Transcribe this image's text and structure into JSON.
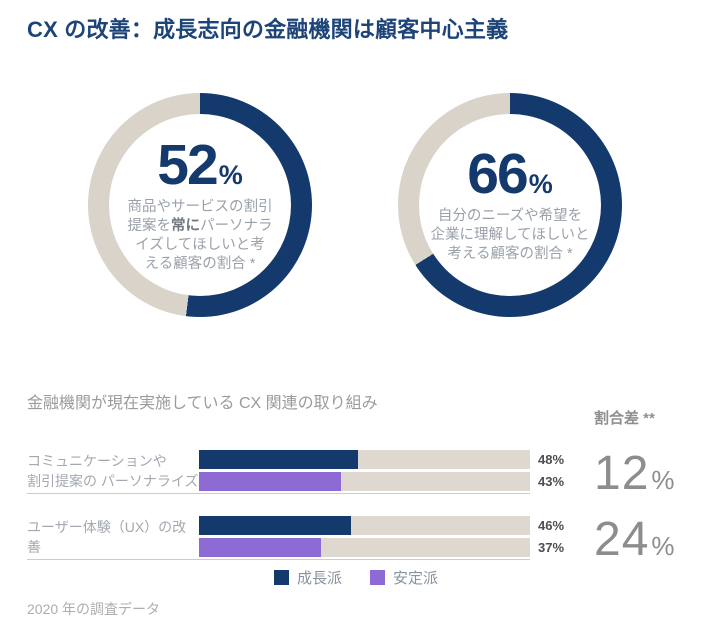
{
  "title": "CX の改善：成長志向の金融機関は顧客中心主義",
  "colors": {
    "navy": "#143a6d",
    "title_navy": "#1d4478",
    "purple": "#8d6ad4",
    "beige": "#d9d3c9",
    "track": "#ded8d1"
  },
  "donuts": [
    {
      "value": 52,
      "number": "52",
      "pct": "%",
      "caption": {
        "l1": "商品やサービスの割引",
        "l2_pre": "提案を",
        "l2_bold": "常に",
        "l2_post": "パーソナラ",
        "l3": "イズしてほしいと考",
        "l4": "える顧客の割合 *"
      }
    },
    {
      "value": 66,
      "number": "66",
      "pct": "%",
      "caption": {
        "l1": "自分のニーズや希望を",
        "l2": "企業に理解してほしいと",
        "l3": "考える顧客の割合 *"
      }
    }
  ],
  "bar_section": {
    "heading": "金融機関が現在実施している CX 関連の取り組み",
    "diff_heading": "割合差 **",
    "rows": [
      {
        "label_line1": "コミュニケーションや",
        "label_line2": "割引提案の パーソナライズ",
        "navy_value": 48,
        "purple_value": 43,
        "navy_label": "48%",
        "purple_label": "43%",
        "diff_number": "12",
        "diff_pct": "%"
      },
      {
        "label_line1": "ユーザー体験（UX）の改善",
        "navy_value": 46,
        "purple_value": 37,
        "navy_label": "46%",
        "purple_label": "37%",
        "diff_number": "24",
        "diff_pct": "%"
      }
    ]
  },
  "legend": {
    "items": [
      {
        "label": "成長派"
      },
      {
        "label": "安定派"
      }
    ]
  },
  "footer": "2020 年の調査データ",
  "chart_data": [
    {
      "type": "pie",
      "subtype": "donut",
      "value": 52,
      "values": [
        52,
        48
      ],
      "slice_colors": [
        "#143a6d",
        "#d9d3c9"
      ],
      "label": "商品やサービスの割引提案を常にパーソナライズしてほしいと考える顧客の割合 *",
      "center_text": "52%"
    },
    {
      "type": "pie",
      "subtype": "donut",
      "value": 66,
      "values": [
        66,
        34
      ],
      "slice_colors": [
        "#143a6d",
        "#d9d3c9"
      ],
      "label": "自分のニーズや希望を企業に理解してほしいと考える顧客の割合 *",
      "center_text": "66%"
    },
    {
      "type": "bar",
      "orientation": "horizontal",
      "title": "金融機関が現在実施している CX 関連の取り組み",
      "categories": [
        "コミュニケーションや割引提案の パーソナライズ",
        "ユーザー体験（UX）の改善"
      ],
      "series": [
        {
          "name": "成長派",
          "color": "#143a6d",
          "values": [
            48,
            46
          ]
        },
        {
          "name": "安定派",
          "color": "#8d6ad4",
          "values": [
            43,
            37
          ]
        }
      ],
      "xlim": [
        0,
        100
      ],
      "legend_position": "bottom",
      "annotations": {
        "diff_heading": "割合差 **",
        "diffs": [
          "12%",
          "24%"
        ]
      },
      "footnote": "2020 年の調査データ"
    }
  ]
}
